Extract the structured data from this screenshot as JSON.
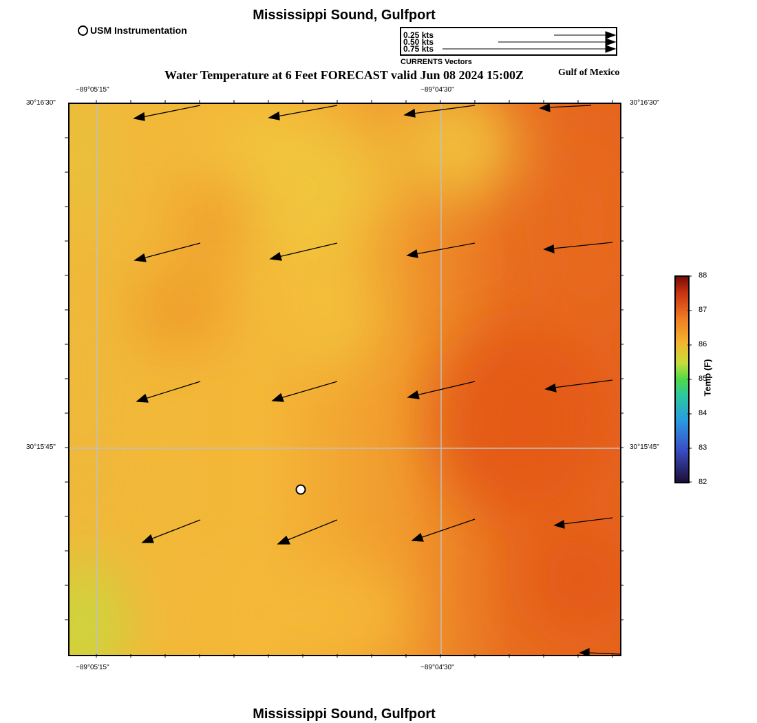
{
  "titles": {
    "top": "Mississippi Sound, Gulfport",
    "bottom": "Mississippi Sound, Gulfport",
    "forecast": "Water Temperature at 6 Feet FORECAST valid Jun 08 2024 15:00Z",
    "region": "Gulf of Mexico"
  },
  "legend": {
    "station_label": "USM Instrumentation",
    "vector_scale": [
      "0.25 kts",
      "0.50 kts",
      "0.75 kts"
    ],
    "vector_caption": "CURRENTS Vectors"
  },
  "axes": {
    "lon_ticks": [
      "−89°05'15\"",
      "−89°04'30\""
    ],
    "lat_ticks": [
      "30°16'30\"",
      "30°15'45\""
    ]
  },
  "colorbar": {
    "label": "Temp (F)",
    "ticks": [
      "88",
      "87",
      "86",
      "85",
      "84",
      "83",
      "82"
    ],
    "min": 82,
    "max": 88
  },
  "colors": {
    "warm_orange": "#f0982e",
    "hot_orange": "#e45b18",
    "yellow": "#f3c23a",
    "yellow_green": "#cbd83c",
    "grid": "#bdbdbd"
  },
  "map": {
    "variable": "water temperature",
    "station_icon": "circle-icon",
    "vector_icon": "arrow-icon"
  }
}
